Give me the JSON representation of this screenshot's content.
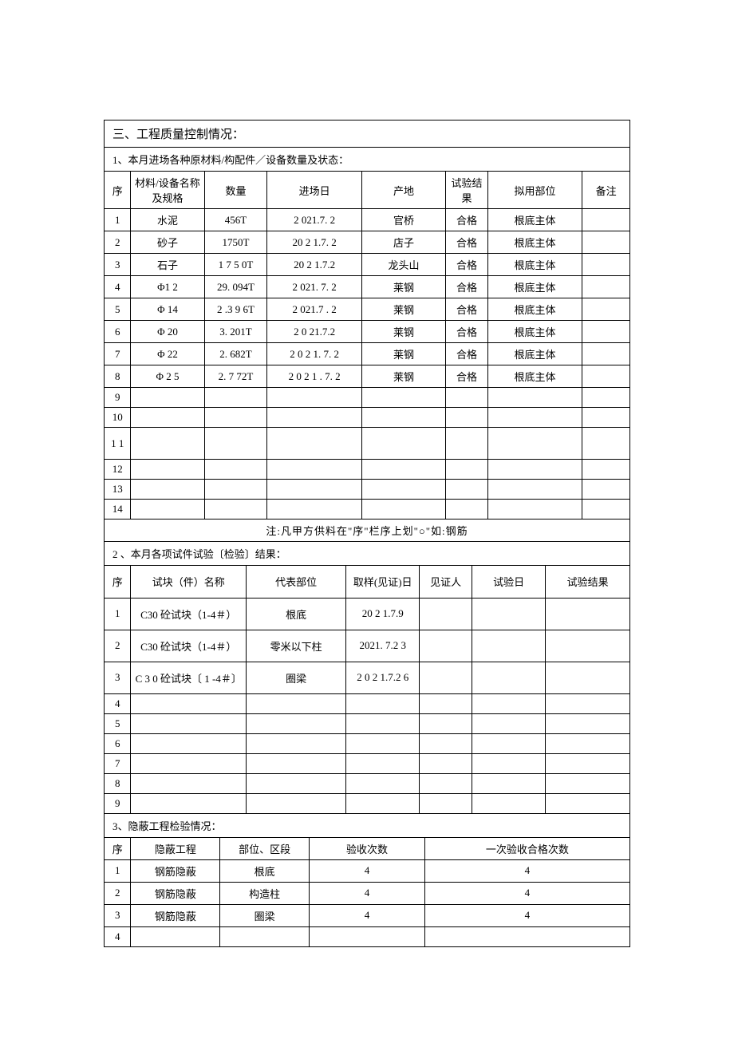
{
  "section_title": "三、工程质量控制情况：",
  "t1": {
    "caption": "1、本月进场各种原材料/构配件／设备数量及状态：",
    "headers": [
      "序",
      "材料/设备名称及规格",
      "数量",
      "进场日",
      "产地",
      "试验结果",
      "拟用部位",
      "备注"
    ],
    "rows": [
      [
        "1",
        "水泥",
        "456T",
        "2 021.7. 2",
        "官桥",
        "合格",
        "根底主体",
        ""
      ],
      [
        "2",
        "砂子",
        "1750T",
        "20 2 1.7. 2",
        "店子",
        "合格",
        "根底主体",
        ""
      ],
      [
        "3",
        "石子",
        "1 7 5 0T",
        "20 2 1.7.2",
        "龙头山",
        "合格",
        "根底主体",
        ""
      ],
      [
        "4",
        "Φ1 2",
        "29. 094T",
        "2 021. 7. 2",
        "莱钢",
        "合格",
        "根底主体",
        ""
      ],
      [
        "5",
        "Φ 14",
        "2 .3 9 6T",
        "2 021.7 . 2",
        "莱钢",
        "合格",
        "根底主体",
        ""
      ],
      [
        "6",
        "Φ 20",
        "3. 201T",
        "2 0 21.7.2",
        "莱钢",
        "合格",
        "根底主体",
        ""
      ],
      [
        "7",
        "Φ 22",
        "2. 682T",
        "2 0 2 1. 7. 2",
        "莱钢",
        "合格",
        "根底主体",
        ""
      ],
      [
        "8",
        "Φ 2 5",
        "2. 7 72T",
        "2 0 2 1 . 7. 2",
        "莱钢",
        "合格",
        "根底主体",
        ""
      ],
      [
        "9",
        "",
        "",
        "",
        "",
        "",
        "",
        ""
      ],
      [
        "10",
        "",
        "",
        "",
        "",
        "",
        "",
        ""
      ],
      [
        "1 1",
        "",
        "",
        "",
        "",
        "",
        "",
        ""
      ],
      [
        "12",
        "",
        "",
        "",
        "",
        "",
        "",
        ""
      ],
      [
        "13",
        "",
        "",
        "",
        "",
        "",
        "",
        ""
      ],
      [
        "14",
        "",
        "",
        "",
        "",
        "",
        "",
        ""
      ]
    ],
    "note": "注:凡甲方供料在\"序\"栏序上划\"○\"如:钢筋"
  },
  "t2": {
    "caption": "2 、本月各项试件试验〔检验〕结果：",
    "headers": [
      "序",
      "试块（件）名称",
      "代表部位",
      "取样(见证)日",
      "见证人",
      "试验日",
      "试验结果"
    ],
    "rows": [
      [
        "1",
        "C30 砼试块（1-4＃）",
        "根底",
        "20 2 1.7.9",
        "",
        "",
        ""
      ],
      [
        "2",
        "C30 砼试块（1-4＃）",
        "零米以下柱",
        "2021. 7.2 3",
        "",
        "",
        ""
      ],
      [
        "3",
        "C 3 0 砼试块〔 1 -4＃〕",
        "圈梁",
        "2 0 2 1.7.2 6",
        "",
        "",
        ""
      ],
      [
        "4",
        "",
        "",
        "",
        "",
        "",
        ""
      ],
      [
        "5",
        "",
        "",
        "",
        "",
        "",
        ""
      ],
      [
        "6",
        "",
        "",
        "",
        "",
        "",
        ""
      ],
      [
        "7",
        "",
        "",
        "",
        "",
        "",
        ""
      ],
      [
        "8",
        "",
        "",
        "",
        "",
        "",
        ""
      ],
      [
        "9",
        "",
        "",
        "",
        "",
        "",
        ""
      ]
    ]
  },
  "t3": {
    "caption": "3、隐蔽工程检验情况：",
    "headers": [
      "序",
      "隐蔽工程",
      "部位、区段",
      "验收次数",
      "一次验收合格次数"
    ],
    "rows": [
      [
        "1",
        "钢筋隐蔽",
        "根底",
        "4",
        "4"
      ],
      [
        "2",
        "钢筋隐蔽",
        "构造柱",
        "4",
        "4"
      ],
      [
        "3",
        "钢筋隐蔽",
        "圈梁",
        "4",
        "4"
      ],
      [
        "4",
        "",
        "",
        "",
        ""
      ]
    ]
  },
  "widths": {
    "t1": [
      "5%",
      "14%",
      "12%",
      "18%",
      "16%",
      "8%",
      "18%",
      "9%"
    ],
    "t2": [
      "5%",
      "22%",
      "19%",
      "14%",
      "10%",
      "14%",
      "16%"
    ],
    "t3": [
      "5%",
      "17%",
      "17%",
      "22%",
      "39%"
    ]
  }
}
